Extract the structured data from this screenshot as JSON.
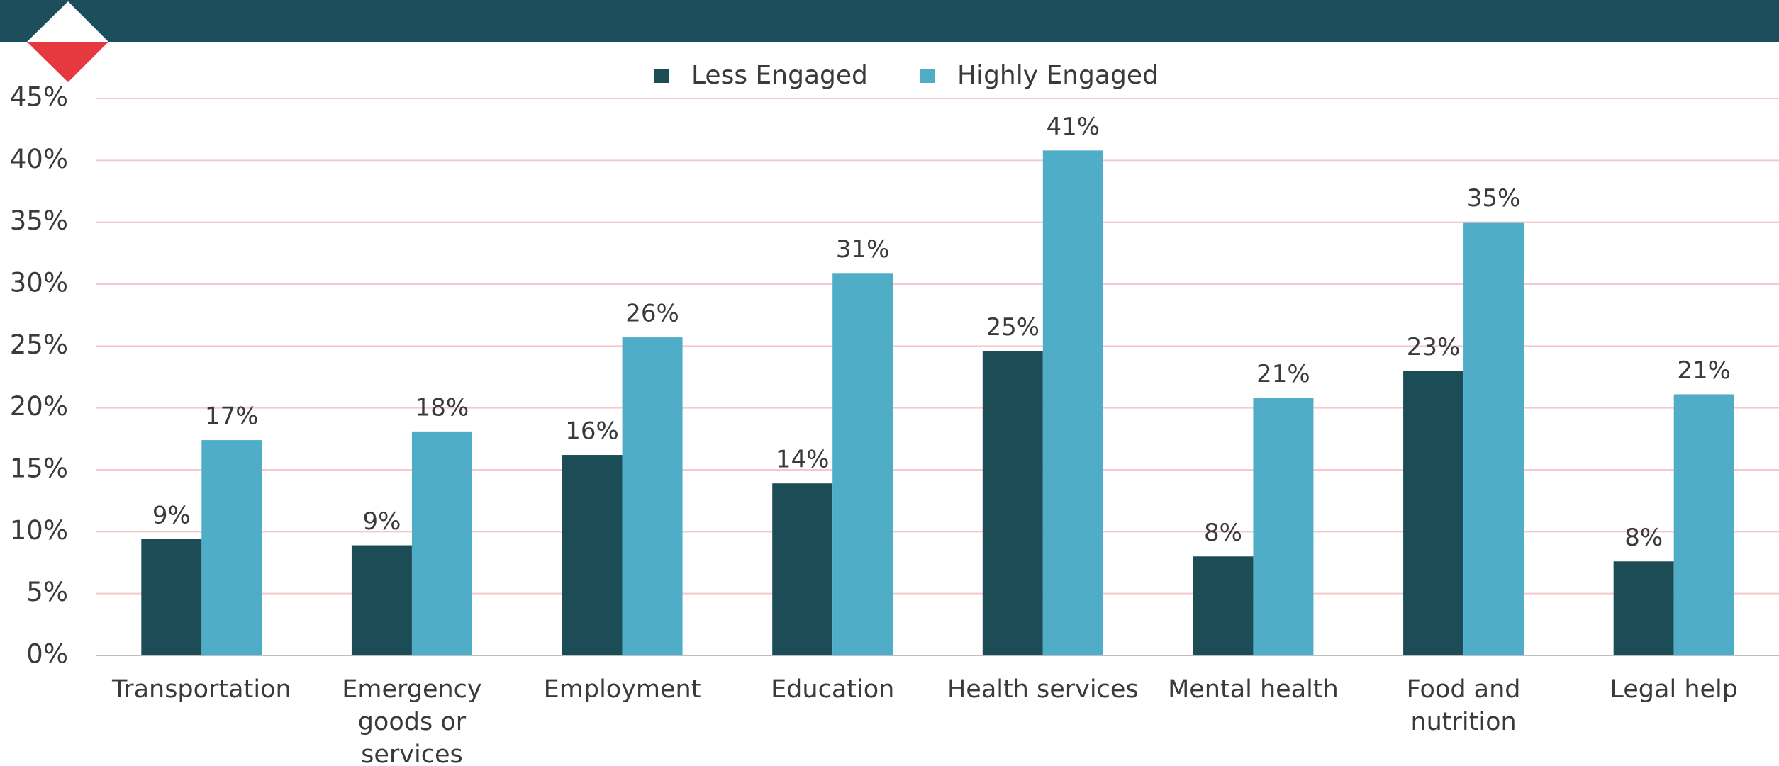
{
  "chart_data": {
    "type": "bar",
    "categories": [
      "Transportation",
      "Emergency goods or services",
      "Employment",
      "Education",
      "Health services",
      "Mental health",
      "Food and nutrition",
      "Legal help"
    ],
    "series": [
      {
        "name": "Less Engaged",
        "color": "#1c4d57",
        "values": [
          9.4,
          8.9,
          16.2,
          13.9,
          24.6,
          8.0,
          23.0,
          7.6
        ],
        "value_labels": [
          "9%",
          "9%",
          "16%",
          "14%",
          "25%",
          "8%",
          "23%",
          "8%"
        ]
      },
      {
        "name": "Highly Engaged",
        "color": "#4fadc8",
        "values": [
          17.4,
          18.1,
          25.7,
          30.9,
          40.8,
          20.8,
          35.0,
          21.1
        ],
        "value_labels": [
          "17%",
          "18%",
          "26%",
          "31%",
          "41%",
          "21%",
          "35%",
          "21%"
        ]
      }
    ],
    "ylim": [
      0,
      45
    ],
    "yticks": [
      {
        "value": 0,
        "label": "0%"
      },
      {
        "value": 5,
        "label": "5%"
      },
      {
        "value": 10,
        "label": "10%"
      },
      {
        "value": 15,
        "label": "15%"
      },
      {
        "value": 20,
        "label": "20%"
      },
      {
        "value": 25,
        "label": "25%"
      },
      {
        "value": 30,
        "label": "30%"
      },
      {
        "value": 35,
        "label": "35%"
      },
      {
        "value": 40,
        "label": "40%"
      },
      {
        "value": 45,
        "label": "45%"
      }
    ],
    "grid": true,
    "legend": "top"
  }
}
